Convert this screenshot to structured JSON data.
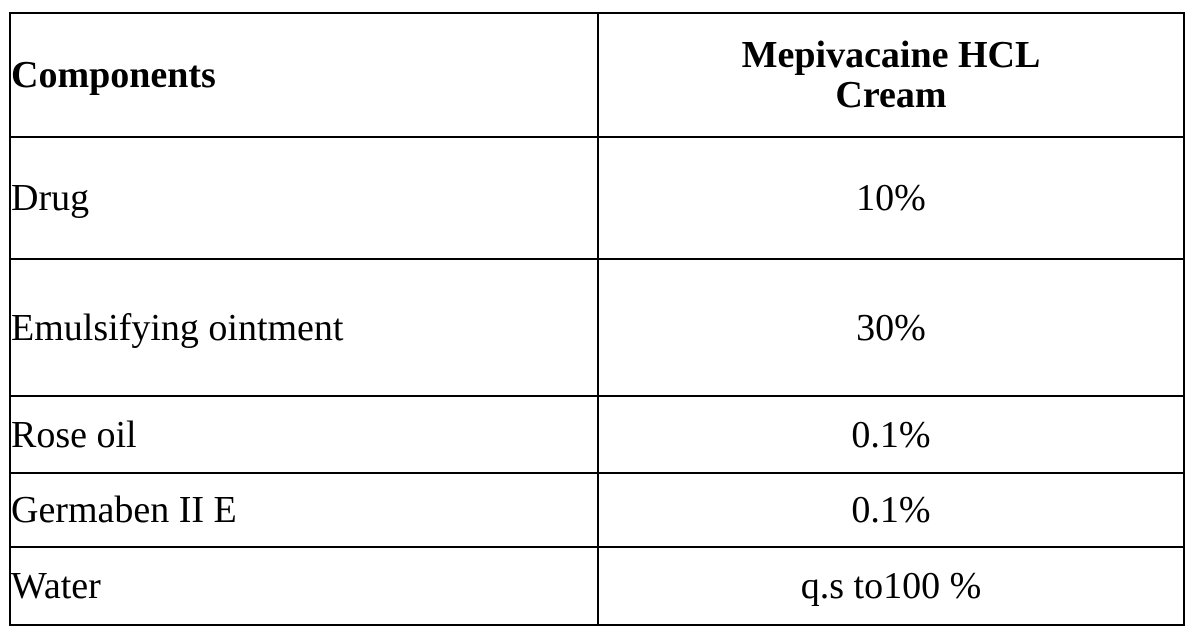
{
  "table": {
    "headers": {
      "components": "Components",
      "product_line1": "Mepivacaine HCL",
      "product_line2": "Cream"
    },
    "rows": [
      {
        "component": "Drug",
        "amount": "10%"
      },
      {
        "component": "Emulsifying ointment",
        "amount": "30%"
      },
      {
        "component": "Rose oil",
        "amount": "0.1%"
      },
      {
        "component": "Germaben II E",
        "amount": "0.1%"
      },
      {
        "component": "Water",
        "amount": "q.s to100 %"
      }
    ]
  }
}
